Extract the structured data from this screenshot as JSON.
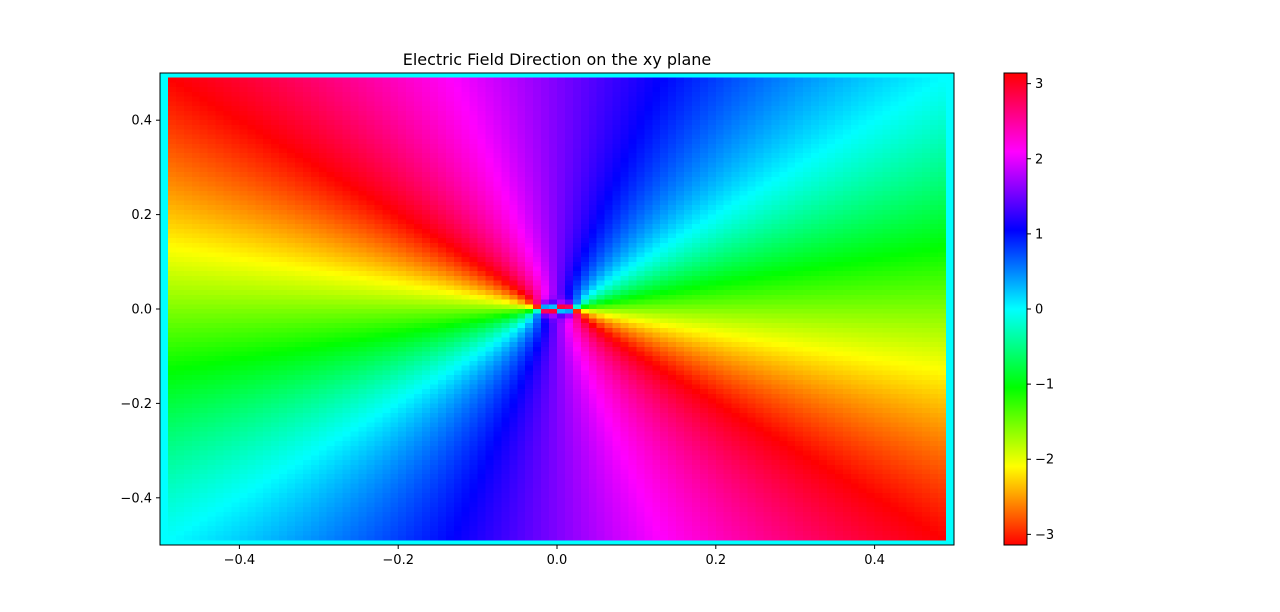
{
  "chart_data": {
    "type": "heatmap",
    "title": "Electric Field Direction on the xy plane",
    "xlabel": "",
    "ylabel": "",
    "xlim": [
      -0.5,
      0.5
    ],
    "ylim": [
      -0.5,
      0.5
    ],
    "x_ticks": [
      "−0.4",
      "−0.2",
      "0.0",
      "0.2",
      "0.4"
    ],
    "x_tick_values": [
      -0.4,
      -0.2,
      0.0,
      0.2,
      0.4
    ],
    "y_ticks": [
      "−0.4",
      "−0.2",
      "0.0",
      "0.2",
      "0.4"
    ],
    "y_tick_values": [
      -0.4,
      -0.2,
      0.0,
      0.2,
      0.4
    ],
    "colormap": "hsv",
    "value_range": [
      -3.14159,
      3.14159
    ],
    "grid_resolution": 100,
    "border_value": 0,
    "field_sources": [
      {
        "x": -0.02,
        "y": 0.0,
        "sign": 1
      },
      {
        "x": 0.02,
        "y": 0.0,
        "sign": 1
      }
    ],
    "phase_offset": -1.5708,
    "colorbar": {
      "ticks": [
        "−3",
        "−2",
        "−1",
        "0",
        "1",
        "2",
        "3"
      ],
      "tick_values": [
        -3,
        -2,
        -1,
        0,
        1,
        2,
        3
      ],
      "range": [
        -3.14159,
        3.14159
      ]
    }
  }
}
